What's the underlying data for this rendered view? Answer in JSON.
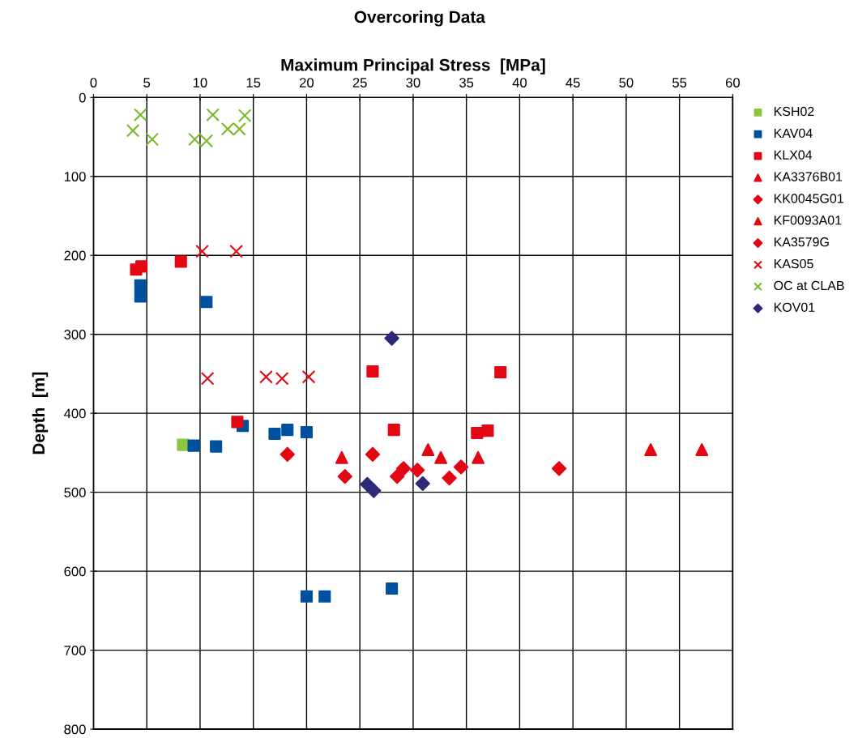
{
  "chart_data": {
    "type": "scatter",
    "title": "Overcoring Data",
    "xlabel": "Maximum Principal Stress  [MPa]",
    "ylabel": "Depth  [m]",
    "xlim": [
      0,
      60
    ],
    "xticks": [
      0,
      5,
      10,
      15,
      20,
      25,
      30,
      35,
      40,
      45,
      50,
      55,
      60
    ],
    "ylim": [
      800,
      0
    ],
    "yticks": [
      0,
      100,
      200,
      300,
      400,
      500,
      600,
      700,
      800
    ],
    "grid": true,
    "legend": "right",
    "series": [
      {
        "name": "KSH02",
        "color": "#8dc63f",
        "marker": "square",
        "x": [
          8.4
        ],
        "values": [
          440
        ]
      },
      {
        "name": "KAV04",
        "color": "#0050a0",
        "marker": "square",
        "x": [
          4.4,
          4.4,
          10.6,
          14.0,
          17.0,
          18.2,
          20.0,
          9.4,
          11.5,
          20.0,
          21.7,
          28.0
        ],
        "values": [
          238,
          252,
          259,
          416,
          426,
          421,
          424,
          441,
          442,
          632,
          632,
          622
        ]
      },
      {
        "name": "KLX04",
        "color": "#e30613",
        "marker": "square",
        "x": [
          4.0,
          4.5,
          8.2,
          26.2,
          13.5,
          28.2,
          38.2,
          36.0,
          37.0
        ],
        "values": [
          218,
          214,
          208,
          347,
          411,
          421,
          348,
          425,
          422
        ]
      },
      {
        "name": "KA3376B01",
        "color": "#e30613",
        "marker": "triangle",
        "x": [
          31.4,
          52.3,
          57.1
        ],
        "values": [
          446,
          446,
          446
        ]
      },
      {
        "name": "KK0045G01",
        "color": "#e30613",
        "marker": "diamond",
        "x": [
          18.2,
          23.6,
          26.2,
          28.5,
          33.4
        ],
        "values": [
          452,
          480,
          452,
          480,
          482
        ]
      },
      {
        "name": "KF0093A01",
        "color": "#e30613",
        "marker": "triangle",
        "x": [
          23.3,
          32.6,
          36.1
        ],
        "values": [
          456,
          456,
          456
        ]
      },
      {
        "name": "KA3579G",
        "color": "#e30613",
        "marker": "diamond",
        "x": [
          29.1,
          30.4,
          34.5,
          43.7
        ],
        "values": [
          470,
          472,
          468,
          470
        ]
      },
      {
        "name": "KAS05",
        "color": "#e30613",
        "marker": "cross",
        "x": [
          10.2,
          13.4,
          10.7,
          16.2,
          17.7,
          20.2
        ],
        "values": [
          195,
          195,
          356,
          354,
          356,
          354
        ]
      },
      {
        "name": "OC at CLAB",
        "color": "#7ab929",
        "marker": "cross",
        "x": [
          4.4,
          3.7,
          5.5,
          9.5,
          10.6,
          11.2,
          12.6,
          13.7,
          14.2
        ],
        "values": [
          22,
          42,
          53,
          53,
          55,
          22,
          40,
          40,
          23
        ]
      },
      {
        "name": "KOV01",
        "color": "#2e2a78",
        "marker": "diamond",
        "x": [
          28.0,
          25.7,
          26.3,
          30.9
        ],
        "values": [
          305,
          490,
          498,
          489
        ]
      }
    ]
  }
}
